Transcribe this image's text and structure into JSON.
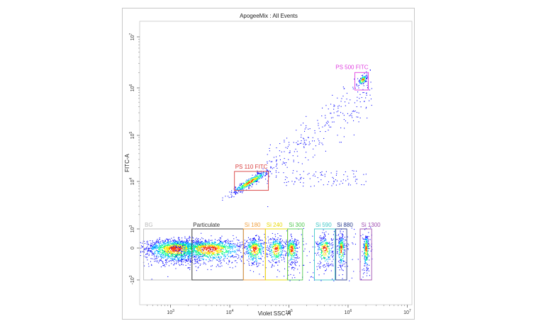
{
  "chart_data": {
    "type": "scatter",
    "title": "ApogeeMix : All Events",
    "xlabel": "Violet SSC-A",
    "ylabel": "FITC-A",
    "x_scale": "log",
    "y_scale": "biexponential",
    "xlim": [
      300,
      12000000
    ],
    "x_ticks": [
      {
        "value": 1000,
        "label": "10",
        "exp": "3"
      },
      {
        "value": 10000,
        "label": "10",
        "exp": "4"
      },
      {
        "value": 100000,
        "label": "10",
        "exp": "5"
      },
      {
        "value": 1000000,
        "label": "10",
        "exp": "6"
      },
      {
        "value": 10000000,
        "label": "10",
        "exp": "7"
      }
    ],
    "y_ticks": [
      {
        "value": -1000,
        "label": "-10",
        "exp": "3"
      },
      {
        "value": 0,
        "label": "0",
        "exp": ""
      },
      {
        "value": 1000,
        "label": "10",
        "exp": "3"
      },
      {
        "value": 10000,
        "label": "10",
        "exp": "4"
      },
      {
        "value": 100000,
        "label": "10",
        "exp": "5"
      },
      {
        "value": 1000000,
        "label": "10",
        "exp": "6"
      },
      {
        "value": 10000000,
        "label": "10",
        "exp": "7"
      }
    ],
    "grid": false,
    "legend": "none",
    "colormap": [
      "#1010ff",
      "#00b4ff",
      "#00ff80",
      "#ffe600",
      "#ff2a00"
    ],
    "gates": [
      {
        "name": "BG",
        "color": "#bbbbbb",
        "x": [
          350,
          2300
        ],
        "y": [
          -1000,
          1000
        ]
      },
      {
        "name": "Particulate",
        "color": "#333333",
        "x": [
          2300,
          17000
        ],
        "y": [
          -1000,
          1000
        ]
      },
      {
        "name": "Si 180",
        "color": "#f0a040",
        "x": [
          17000,
          40000
        ],
        "y": [
          -1000,
          1000
        ]
      },
      {
        "name": "Si 240",
        "color": "#e8d800",
        "x": [
          40000,
          95000
        ],
        "y": [
          -1000,
          1000
        ]
      },
      {
        "name": "Si 300",
        "color": "#50c850",
        "x": [
          95000,
          170000
        ],
        "y": [
          -1000,
          1000
        ]
      },
      {
        "name": "Si 590",
        "color": "#40c8c8",
        "x": [
          270000,
          600000
        ],
        "y": [
          -1000,
          1000
        ]
      },
      {
        "name": "Si 880",
        "color": "#283c8c",
        "x": [
          620000,
          950000
        ],
        "y": [
          -1000,
          1000
        ]
      },
      {
        "name": "Si 1300",
        "color": "#a050b0",
        "x": [
          1600000,
          2500000
        ],
        "y": [
          -1000,
          1000
        ]
      },
      {
        "name": "PS 110 FITC",
        "color": "#d83c3c",
        "x": [
          12000,
          45000
        ],
        "y": [
          6500,
          16500
        ]
      },
      {
        "name": "PS 500 FITC",
        "color": "#e040e0",
        "x": [
          1300000,
          2200000
        ],
        "y": [
          900000,
          2000000
        ]
      }
    ],
    "populations": [
      {
        "name": "BG",
        "x_center": 1200,
        "y_center": 0,
        "x_spread_decades": 0.26,
        "y_spread": 230,
        "count": 1500
      },
      {
        "name": "Particulate",
        "x_center": 4500,
        "y_center": 0,
        "x_spread_decades": 0.3,
        "y_spread": 230,
        "count": 1100
      },
      {
        "name": "Si 180",
        "x_center": 26000,
        "y_center": 0,
        "x_spread_decades": 0.09,
        "y_spread": 260,
        "count": 380
      },
      {
        "name": "Si 240",
        "x_center": 60000,
        "y_center": 0,
        "x_spread_decades": 0.07,
        "y_spread": 260,
        "count": 300
      },
      {
        "name": "Si 300",
        "x_center": 110000,
        "y_center": 0,
        "x_spread_decades": 0.05,
        "y_spread": 260,
        "count": 280
      },
      {
        "name": "Si 590",
        "x_center": 400000,
        "y_center": 0,
        "x_spread_decades": 0.07,
        "y_spread": 300,
        "count": 260
      },
      {
        "name": "Si 880",
        "x_center": 760000,
        "y_center": 0,
        "x_spread_decades": 0.03,
        "y_spread": 330,
        "count": 220
      },
      {
        "name": "Si 1300",
        "x_center": 2000000,
        "y_center": 0,
        "x_spread_decades": 0.025,
        "y_spread": 340,
        "count": 240
      },
      {
        "name": "PS 110 FITC",
        "x_center": 22000,
        "y_center": 10000,
        "x_spread_decades": 0.16,
        "y_spread": 1400,
        "count": 420
      },
      {
        "name": "PS 500 FITC",
        "x_center": 1750000,
        "y_center": 1450000,
        "x_spread_decades": 0.035,
        "y_spread": 120000,
        "count": 110
      }
    ]
  }
}
